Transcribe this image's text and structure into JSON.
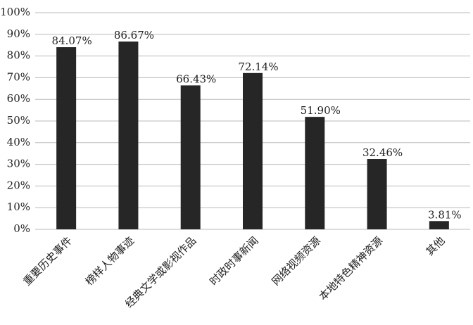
{
  "chart_data": {
    "type": "bar",
    "categories": [
      "重要历史事件",
      "榜样人物事迹",
      "经典文学或影视作品",
      "时政时事新闻",
      "网络视频资源",
      "本地特色精神资源",
      "其他"
    ],
    "values": [
      84.07,
      86.67,
      66.43,
      72.14,
      51.9,
      32.46,
      3.81
    ],
    "value_labels": [
      "84.07%",
      "86.67%",
      "66.43%",
      "72.14%",
      "51.90%",
      "32.46%",
      "3.81%"
    ],
    "color": "#262626",
    "ylim": [
      0,
      100
    ],
    "yticks": [
      {
        "value": 0,
        "label": "0%"
      },
      {
        "value": 10,
        "label": "10%"
      },
      {
        "value": 20,
        "label": "20%"
      },
      {
        "value": 30,
        "label": "30%"
      },
      {
        "value": 40,
        "label": "40%"
      },
      {
        "value": 50,
        "label": "50%"
      },
      {
        "value": 60,
        "label": "60%"
      },
      {
        "value": 70,
        "label": "70%"
      },
      {
        "value": 80,
        "label": "80%"
      },
      {
        "value": 90,
        "label": "90%"
      },
      {
        "value": 100,
        "label": "100%"
      }
    ],
    "grid": true
  }
}
